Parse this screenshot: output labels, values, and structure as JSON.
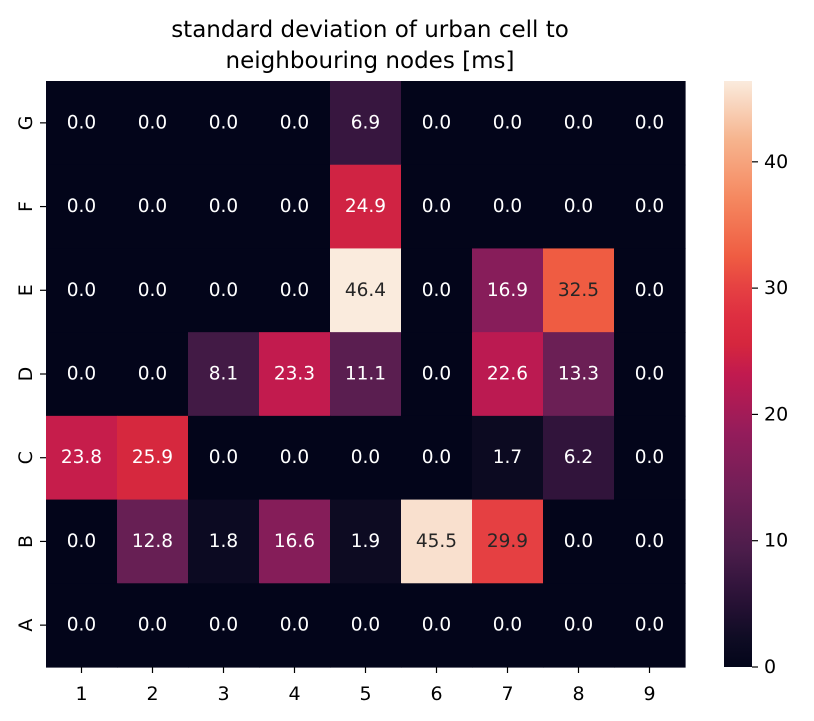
{
  "chart_data": {
    "type": "heatmap",
    "title": [
      "standard deviation of urban cell to",
      "neighbouring nodes [ms]"
    ],
    "x_categories": [
      "1",
      "2",
      "3",
      "4",
      "5",
      "6",
      "7",
      "8",
      "9"
    ],
    "y_categories": [
      "G",
      "F",
      "E",
      "D",
      "C",
      "B",
      "A"
    ],
    "values": [
      [
        0.0,
        0.0,
        0.0,
        0.0,
        6.9,
        0.0,
        0.0,
        0.0,
        0.0
      ],
      [
        0.0,
        0.0,
        0.0,
        0.0,
        24.9,
        0.0,
        0.0,
        0.0,
        0.0
      ],
      [
        0.0,
        0.0,
        0.0,
        0.0,
        46.4,
        0.0,
        16.9,
        32.5,
        0.0
      ],
      [
        0.0,
        0.0,
        8.1,
        23.3,
        11.1,
        0.0,
        22.6,
        13.3,
        0.0
      ],
      [
        23.8,
        25.9,
        0.0,
        0.0,
        0.0,
        0.0,
        1.7,
        6.2,
        0.0
      ],
      [
        0.0,
        12.8,
        1.8,
        16.6,
        1.9,
        45.5,
        29.9,
        0.0,
        0.0
      ],
      [
        0.0,
        0.0,
        0.0,
        0.0,
        0.0,
        0.0,
        0.0,
        0.0,
        0.0
      ]
    ],
    "value_format": "0.0",
    "colormap": "rocket",
    "colorbar": {
      "range": [
        0,
        46.4
      ],
      "ticks": [
        0,
        10,
        20,
        30,
        40
      ],
      "tick_labels": [
        "0",
        "10",
        "20",
        "30",
        "40"
      ]
    },
    "xlabel": "",
    "ylabel": "",
    "grid": false
  }
}
